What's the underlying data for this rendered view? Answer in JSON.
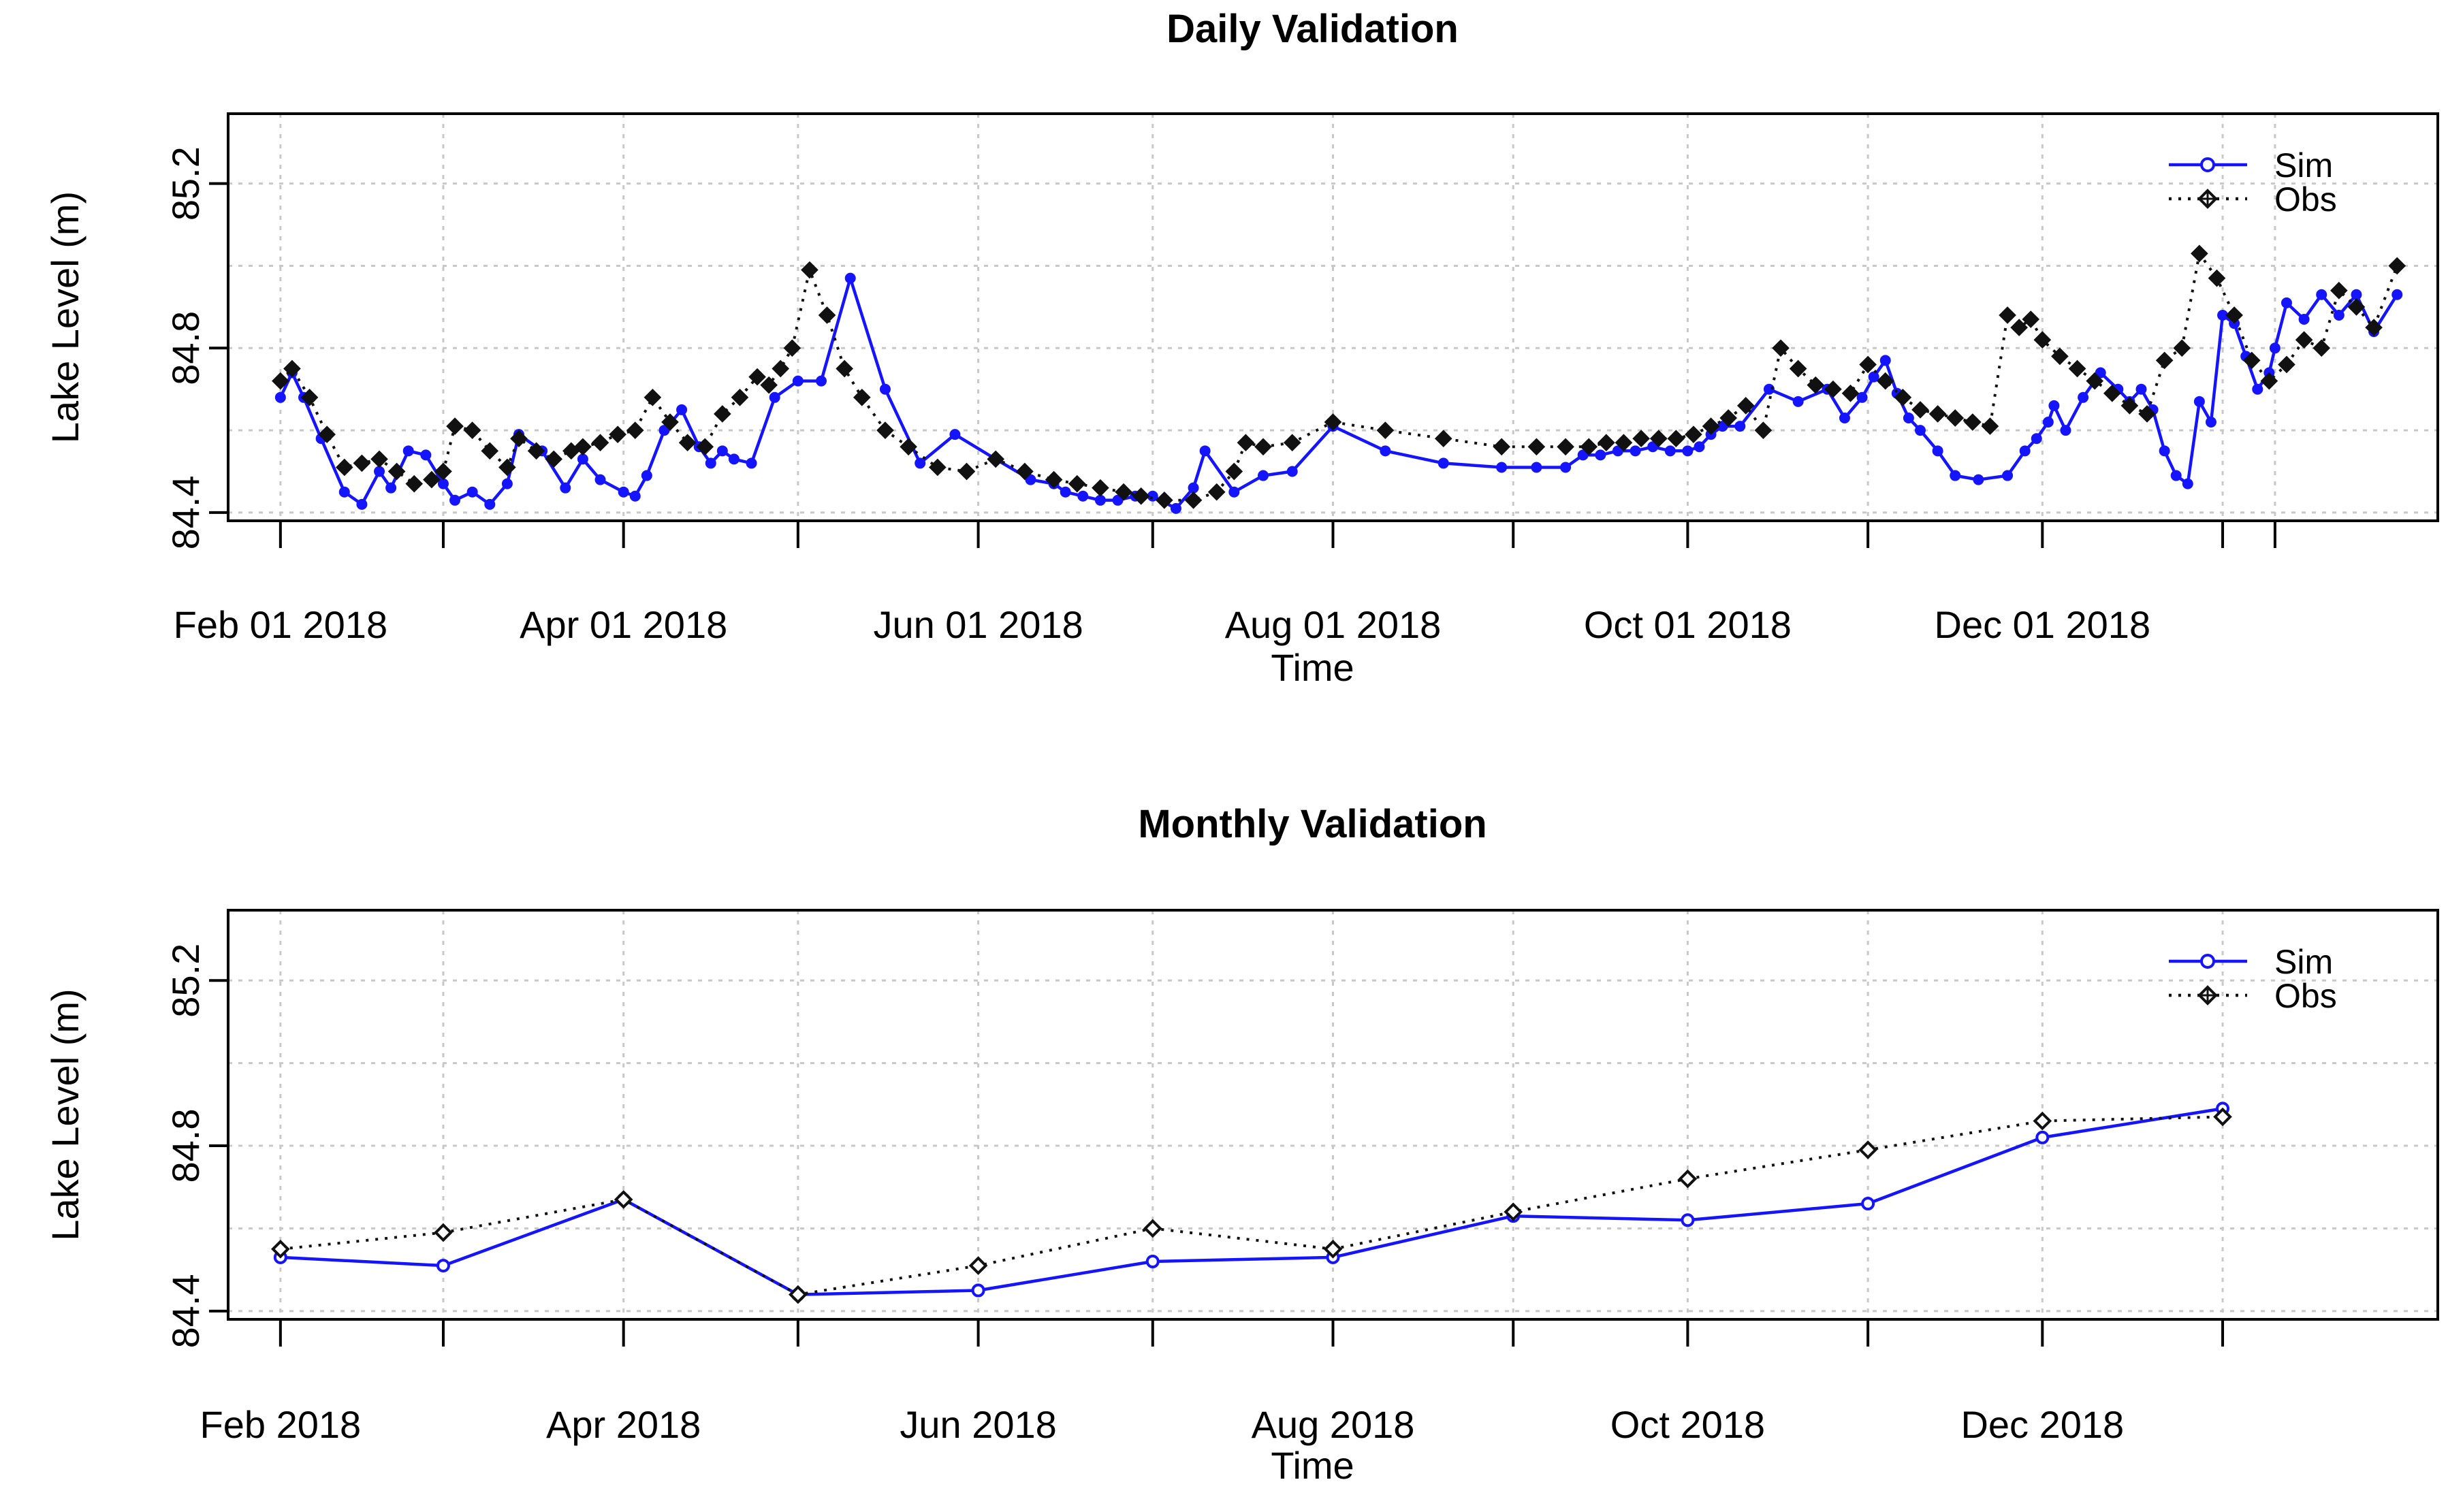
{
  "colors": {
    "sim": "#1414ff",
    "obs": "#111111",
    "grid": "#c8c8c8",
    "frame": "#000000"
  },
  "chart_data": [
    {
      "type": "line",
      "title": "Daily Validation",
      "xlabel": "Time",
      "ylabel": "Lake Level (m)",
      "xlim": [
        "2018-01-23",
        "2019-02-07"
      ],
      "ylim": [
        84.38,
        85.37
      ],
      "yticks": [
        84.4,
        84.8,
        85.2
      ],
      "ytick_labels": [
        "84.4",
        "84.8",
        "85.2"
      ],
      "xticks": [
        "2018-02-01",
        "2018-03-01",
        "2018-04-01",
        "2018-05-01",
        "2018-06-01",
        "2018-07-01",
        "2018-08-01",
        "2018-09-01",
        "2018-10-01",
        "2018-11-01",
        "2018-12-01",
        "2019-01-01",
        "2019-01-10"
      ],
      "xtick_labels": [
        "Feb 01 2018",
        "",
        "Apr 01 2018",
        "",
        "Jun 01 2018",
        "",
        "Aug 01 2018",
        "",
        "Oct 01 2018",
        "",
        "Dec 01 2018",
        "",
        ""
      ],
      "grid": true,
      "legend": "top-right",
      "series": [
        {
          "name": "Sim",
          "style": "solid-circle",
          "x": [
            "2018-02-01",
            "2018-02-03",
            "2018-02-05",
            "2018-02-08",
            "2018-02-12",
            "2018-02-15",
            "2018-02-18",
            "2018-02-20",
            "2018-02-23",
            "2018-02-26",
            "2018-03-01",
            "2018-03-03",
            "2018-03-06",
            "2018-03-09",
            "2018-03-12",
            "2018-03-14",
            "2018-03-18",
            "2018-03-22",
            "2018-03-25",
            "2018-03-28",
            "2018-04-01",
            "2018-04-03",
            "2018-04-05",
            "2018-04-08",
            "2018-04-11",
            "2018-04-14",
            "2018-04-16",
            "2018-04-18",
            "2018-04-20",
            "2018-04-23",
            "2018-04-27",
            "2018-05-01",
            "2018-05-05",
            "2018-05-10",
            "2018-05-16",
            "2018-05-22",
            "2018-05-28",
            "2018-06-04",
            "2018-06-10",
            "2018-06-14",
            "2018-06-16",
            "2018-06-19",
            "2018-06-22",
            "2018-06-25",
            "2018-06-28",
            "2018-07-01",
            "2018-07-05",
            "2018-07-08",
            "2018-07-10",
            "2018-07-15",
            "2018-07-20",
            "2018-07-25",
            "2018-08-01",
            "2018-08-10",
            "2018-08-20",
            "2018-08-30",
            "2018-09-05",
            "2018-09-10",
            "2018-09-13",
            "2018-09-16",
            "2018-09-19",
            "2018-09-22",
            "2018-09-25",
            "2018-09-28",
            "2018-10-01",
            "2018-10-03",
            "2018-10-05",
            "2018-10-07",
            "2018-10-10",
            "2018-10-15",
            "2018-10-20",
            "2018-10-25",
            "2018-10-28",
            "2018-10-31",
            "2018-11-02",
            "2018-11-04",
            "2018-11-06",
            "2018-11-08",
            "2018-11-10",
            "2018-11-13",
            "2018-11-16",
            "2018-11-20",
            "2018-11-25",
            "2018-11-28",
            "2018-11-30",
            "2018-12-02",
            "2018-12-03",
            "2018-12-05",
            "2018-12-08",
            "2018-12-11",
            "2018-12-14",
            "2018-12-16",
            "2018-12-18",
            "2018-12-20",
            "2018-12-22",
            "2018-12-24",
            "2018-12-26",
            "2018-12-28",
            "2018-12-30",
            "2019-01-01",
            "2019-01-03",
            "2019-01-05",
            "2019-01-07",
            "2019-01-09",
            "2019-01-10",
            "2019-01-12",
            "2019-01-15",
            "2019-01-18",
            "2019-01-21",
            "2019-01-24",
            "2019-01-27",
            "2019-01-31"
          ],
          "y": [
            84.68,
            84.74,
            84.68,
            84.58,
            84.45,
            84.42,
            84.5,
            84.46,
            84.55,
            84.54,
            84.47,
            84.43,
            84.45,
            84.42,
            84.47,
            84.59,
            84.55,
            84.46,
            84.53,
            84.48,
            84.45,
            84.44,
            84.49,
            84.6,
            84.65,
            84.56,
            84.52,
            84.55,
            84.53,
            84.52,
            84.68,
            84.72,
            84.72,
            84.97,
            84.7,
            84.52,
            84.59,
            84.53,
            84.48,
            84.47,
            84.45,
            84.44,
            84.43,
            84.43,
            84.44,
            84.44,
            84.41,
            84.46,
            84.55,
            84.45,
            84.49,
            84.5,
            84.61,
            84.55,
            84.52,
            84.51,
            84.51,
            84.51,
            84.54,
            84.54,
            84.55,
            84.55,
            84.56,
            84.55,
            84.55,
            84.56,
            84.59,
            84.61,
            84.61,
            84.7,
            84.67,
            84.7,
            84.63,
            84.68,
            84.73,
            84.77,
            84.69,
            84.63,
            84.6,
            84.55,
            84.49,
            84.48,
            84.49,
            84.55,
            84.58,
            84.62,
            84.66,
            84.6,
            84.68,
            84.74,
            84.7,
            84.67,
            84.7,
            84.65,
            84.55,
            84.49,
            84.47,
            84.67,
            84.62,
            84.88,
            84.86,
            84.78,
            84.7,
            84.74,
            84.8,
            84.91,
            84.87,
            84.93,
            84.88,
            84.93,
            84.84,
            84.93
          ]
        },
        {
          "name": "Obs",
          "style": "dotted-diamond",
          "x": [
            "2018-02-01",
            "2018-02-03",
            "2018-02-06",
            "2018-02-09",
            "2018-02-12",
            "2018-02-15",
            "2018-02-18",
            "2018-02-21",
            "2018-02-24",
            "2018-02-27",
            "2018-03-01",
            "2018-03-03",
            "2018-03-06",
            "2018-03-09",
            "2018-03-12",
            "2018-03-14",
            "2018-03-17",
            "2018-03-20",
            "2018-03-23",
            "2018-03-25",
            "2018-03-28",
            "2018-03-31",
            "2018-04-03",
            "2018-04-06",
            "2018-04-09",
            "2018-04-12",
            "2018-04-15",
            "2018-04-18",
            "2018-04-21",
            "2018-04-24",
            "2018-04-26",
            "2018-04-28",
            "2018-04-30",
            "2018-05-03",
            "2018-05-06",
            "2018-05-09",
            "2018-05-12",
            "2018-05-16",
            "2018-05-20",
            "2018-05-25",
            "2018-05-30",
            "2018-06-04",
            "2018-06-09",
            "2018-06-14",
            "2018-06-18",
            "2018-06-22",
            "2018-06-26",
            "2018-06-29",
            "2018-07-03",
            "2018-07-08",
            "2018-07-12",
            "2018-07-15",
            "2018-07-17",
            "2018-07-20",
            "2018-07-25",
            "2018-08-01",
            "2018-08-10",
            "2018-08-20",
            "2018-08-30",
            "2018-09-05",
            "2018-09-10",
            "2018-09-14",
            "2018-09-17",
            "2018-09-20",
            "2018-09-23",
            "2018-09-26",
            "2018-09-29",
            "2018-10-02",
            "2018-10-05",
            "2018-10-08",
            "2018-10-11",
            "2018-10-14",
            "2018-10-17",
            "2018-10-20",
            "2018-10-23",
            "2018-10-26",
            "2018-10-29",
            "2018-11-01",
            "2018-11-04",
            "2018-11-07",
            "2018-11-10",
            "2018-11-13",
            "2018-11-16",
            "2018-11-19",
            "2018-11-22",
            "2018-11-25",
            "2018-11-27",
            "2018-11-29",
            "2018-12-01",
            "2018-12-04",
            "2018-12-07",
            "2018-12-10",
            "2018-12-13",
            "2018-12-16",
            "2018-12-19",
            "2018-12-22",
            "2018-12-25",
            "2018-12-28",
            "2018-12-31",
            "2019-01-03",
            "2019-01-06",
            "2019-01-09",
            "2019-01-12",
            "2019-01-15",
            "2019-01-18",
            "2019-01-21",
            "2019-01-24",
            "2019-01-27",
            "2019-01-31"
          ],
          "y": [
            84.72,
            84.75,
            84.68,
            84.59,
            84.51,
            84.52,
            84.53,
            84.5,
            84.47,
            84.48,
            84.5,
            84.61,
            84.6,
            84.55,
            84.51,
            84.58,
            84.55,
            84.53,
            84.55,
            84.56,
            84.57,
            84.59,
            84.6,
            84.68,
            84.62,
            84.57,
            84.56,
            84.64,
            84.68,
            84.73,
            84.71,
            84.75,
            84.8,
            84.99,
            84.88,
            84.75,
            84.68,
            84.6,
            84.56,
            84.51,
            84.5,
            84.53,
            84.5,
            84.48,
            84.47,
            84.46,
            84.45,
            84.44,
            84.43,
            84.43,
            84.45,
            84.5,
            84.57,
            84.56,
            84.57,
            84.62,
            84.6,
            84.58,
            84.56,
            84.56,
            84.56,
            84.56,
            84.57,
            84.57,
            84.58,
            84.58,
            84.58,
            84.59,
            84.61,
            84.63,
            84.66,
            84.6,
            84.8,
            84.75,
            84.71,
            84.7,
            84.69,
            84.76,
            84.72,
            84.68,
            84.65,
            84.64,
            84.63,
            84.62,
            84.61,
            84.88,
            84.85,
            84.87,
            84.82,
            84.78,
            84.75,
            84.72,
            84.69,
            84.66,
            84.64,
            84.77,
            84.8,
            85.03,
            84.97,
            84.88,
            84.77,
            84.72,
            84.76,
            84.82,
            84.8,
            84.94,
            84.9,
            84.85,
            85.0
          ]
        }
      ]
    },
    {
      "type": "line",
      "title": "Monthly Validation",
      "xlabel": "Time",
      "ylabel": "Lake Level (m)",
      "xlim": [
        "2018-01-23",
        "2019-02-07"
      ],
      "ylim": [
        84.38,
        85.37
      ],
      "yticks": [
        84.4,
        84.8,
        85.2
      ],
      "ytick_labels": [
        "84.4",
        "84.8",
        "85.2"
      ],
      "xticks": [
        "2018-02-01",
        "2018-03-01",
        "2018-04-01",
        "2018-05-01",
        "2018-06-01",
        "2018-07-01",
        "2018-08-01",
        "2018-09-01",
        "2018-10-01",
        "2018-11-01",
        "2018-12-01",
        "2019-01-01"
      ],
      "xtick_labels": [
        "Feb 2018",
        "",
        "Apr 2018",
        "",
        "Jun 2018",
        "",
        "Aug 2018",
        "",
        "Oct 2018",
        "",
        "Dec 2018",
        ""
      ],
      "grid": true,
      "legend": "top-right",
      "series": [
        {
          "name": "Sim",
          "style": "solid-circle",
          "x": [
            "2018-02-01",
            "2018-03-01",
            "2018-04-01",
            "2018-05-01",
            "2018-06-01",
            "2018-07-01",
            "2018-08-01",
            "2018-09-01",
            "2018-10-01",
            "2018-11-01",
            "2018-12-01",
            "2019-01-01"
          ],
          "y": [
            84.53,
            84.51,
            84.67,
            84.44,
            84.45,
            84.52,
            84.53,
            84.63,
            84.62,
            84.66,
            84.82,
            84.89
          ]
        },
        {
          "name": "Obs",
          "style": "dotted-diamond",
          "x": [
            "2018-02-01",
            "2018-03-01",
            "2018-04-01",
            "2018-05-01",
            "2018-06-01",
            "2018-07-01",
            "2018-08-01",
            "2018-09-01",
            "2018-10-01",
            "2018-11-01",
            "2018-12-01",
            "2019-01-01"
          ],
          "y": [
            84.55,
            84.59,
            84.67,
            84.44,
            84.51,
            84.6,
            84.55,
            84.64,
            84.72,
            84.79,
            84.86,
            84.87
          ]
        }
      ]
    }
  ]
}
